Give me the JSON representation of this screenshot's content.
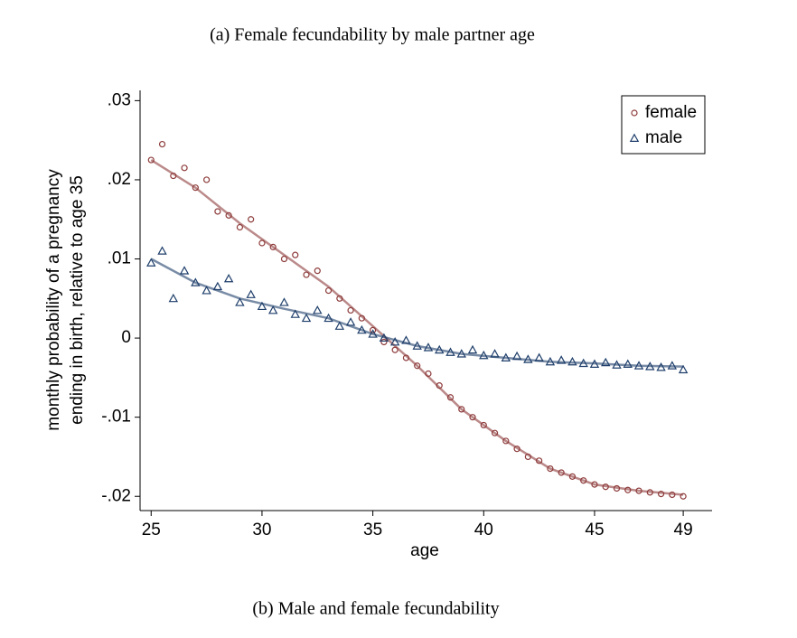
{
  "chart_data": {
    "type": "scatter",
    "title": "(a) Female fecundability by male partner age",
    "caption": "(b) Male and female fecundability",
    "ylabel": [
      "monthly probability of a pregnancy",
      "ending in birth, relative to age 35"
    ],
    "xlabel": "age",
    "xlim": [
      24.5,
      50.3
    ],
    "ylim": [
      -0.0218,
      0.0313
    ],
    "xticks": [
      25,
      30,
      35,
      40,
      45,
      49
    ],
    "yticks": [
      {
        "value": 0.03,
        "label": ".03"
      },
      {
        "value": 0.02,
        "label": ".02"
      },
      {
        "value": 0.01,
        "label": ".01"
      },
      0,
      {
        "value": -0.01,
        "label": "-.01"
      },
      {
        "value": -0.02,
        "label": "-.02"
      }
    ],
    "legend": "top-right",
    "x": [
      25,
      25.5,
      26,
      26.5,
      27,
      27.5,
      28,
      28.5,
      29,
      29.5,
      30,
      30.5,
      31,
      31.5,
      32,
      32.5,
      33,
      33.5,
      34,
      34.5,
      35,
      35.5,
      36,
      36.5,
      37,
      37.5,
      38,
      38.5,
      39,
      39.5,
      40,
      40.5,
      41,
      41.5,
      42,
      42.5,
      43,
      43.5,
      44,
      44.5,
      45,
      45.5,
      46,
      46.5,
      47,
      47.5,
      48,
      48.5,
      49
    ],
    "fit_x": [
      25,
      27,
      29,
      31,
      33,
      35,
      37,
      39,
      41,
      43,
      45,
      47,
      49
    ],
    "series": [
      {
        "name": "female",
        "color": "#8e3b3b",
        "marker": "circle",
        "values": [
          0.0225,
          0.0245,
          0.0205,
          0.0215,
          0.019,
          0.02,
          0.016,
          0.0155,
          0.014,
          0.015,
          0.012,
          0.0115,
          0.01,
          0.0105,
          0.008,
          0.0085,
          0.006,
          0.005,
          0.0035,
          0.0025,
          0.001,
          -0.0005,
          -0.0015,
          -0.0025,
          -0.0035,
          -0.0045,
          -0.006,
          -0.0075,
          -0.009,
          -0.01,
          -0.011,
          -0.012,
          -0.013,
          -0.014,
          -0.015,
          -0.0155,
          -0.0165,
          -0.017,
          -0.0175,
          -0.018,
          -0.0185,
          -0.0188,
          -0.019,
          -0.0192,
          -0.0193,
          -0.0195,
          -0.0197,
          -0.0198,
          -0.02
        ],
        "fit": [
          0.0225,
          0.019,
          0.0145,
          0.0105,
          0.0065,
          0.0015,
          -0.0035,
          -0.009,
          -0.013,
          -0.0165,
          -0.0185,
          -0.0193,
          -0.0198
        ]
      },
      {
        "name": "male",
        "color": "#1f3f6b",
        "marker": "triangle",
        "values": [
          0.0095,
          0.011,
          0.005,
          0.0085,
          0.007,
          0.006,
          0.0065,
          0.0075,
          0.0045,
          0.0055,
          0.004,
          0.0035,
          0.0045,
          0.003,
          0.0025,
          0.0035,
          0.0025,
          0.0015,
          0.002,
          0.001,
          0.0005,
          0,
          -0.0005,
          -0.0003,
          -0.001,
          -0.0012,
          -0.0015,
          -0.0018,
          -0.002,
          -0.0015,
          -0.0022,
          -0.002,
          -0.0025,
          -0.0023,
          -0.0027,
          -0.0025,
          -0.003,
          -0.0028,
          -0.003,
          -0.0032,
          -0.0033,
          -0.0031,
          -0.0034,
          -0.0033,
          -0.0035,
          -0.0036,
          -0.0037,
          -0.0035,
          -0.004
        ],
        "fit": [
          0.01,
          0.007,
          0.005,
          0.0037,
          0.0025,
          0.0005,
          -0.001,
          -0.002,
          -0.0025,
          -0.003,
          -0.0032,
          -0.0035,
          -0.0036
        ]
      }
    ]
  }
}
